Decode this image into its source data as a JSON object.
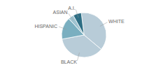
{
  "chart_data": {
    "type": "pie",
    "categories": [
      "WHITE",
      "BLACK",
      "HISPANIC",
      "ASIAN",
      "A.I."
    ],
    "values": [
      38,
      36,
      16,
      4,
      6
    ],
    "colors": [
      "#b8ccd8",
      "#b8ccd8",
      "#7aafc0",
      "#9fc3d0",
      "#2e6e84"
    ]
  }
}
